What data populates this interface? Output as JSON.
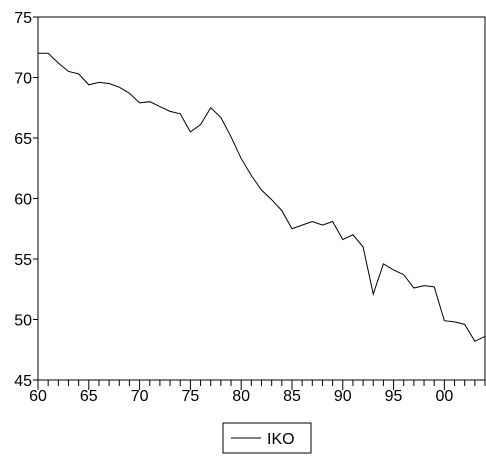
{
  "chart_data": {
    "type": "line",
    "title": "",
    "xlabel": "",
    "ylabel": "",
    "xlim": [
      1960,
      2004
    ],
    "ylim": [
      45,
      75
    ],
    "x_ticks": [
      1960,
      1965,
      1970,
      1975,
      1980,
      1985,
      1990,
      1995,
      2000
    ],
    "x_tick_labels": [
      "60",
      "65",
      "70",
      "75",
      "80",
      "85",
      "90",
      "95",
      "00"
    ],
    "y_ticks": [
      45,
      50,
      55,
      60,
      65,
      70,
      75
    ],
    "y_tick_labels": [
      "45",
      "50",
      "55",
      "60",
      "65",
      "70",
      "75"
    ],
    "grid": false,
    "legend_position": "bottom-center",
    "series": [
      {
        "name": "IKO",
        "color": "#000000",
        "x": [
          1960,
          1961,
          1962,
          1963,
          1964,
          1965,
          1966,
          1967,
          1968,
          1969,
          1970,
          1971,
          1972,
          1973,
          1974,
          1975,
          1976,
          1977,
          1978,
          1979,
          1980,
          1981,
          1982,
          1983,
          1984,
          1985,
          1986,
          1987,
          1988,
          1989,
          1990,
          1991,
          1992,
          1993,
          1994,
          1995,
          1996,
          1997,
          1998,
          1999,
          2000,
          2001,
          2002,
          2003,
          2004
        ],
        "values": [
          72.0,
          72.0,
          71.2,
          70.5,
          70.3,
          69.4,
          69.6,
          69.5,
          69.2,
          68.7,
          67.9,
          68.0,
          67.6,
          67.2,
          67.0,
          65.5,
          66.1,
          67.5,
          66.7,
          65.1,
          63.3,
          61.9,
          60.7,
          59.9,
          59.0,
          57.5,
          57.8,
          58.1,
          57.8,
          58.1,
          56.6,
          57.0,
          56.0,
          52.1,
          54.6,
          54.1,
          53.7,
          52.6,
          52.8,
          52.7,
          49.9,
          49.8,
          49.6,
          48.2,
          48.6
        ]
      }
    ]
  }
}
